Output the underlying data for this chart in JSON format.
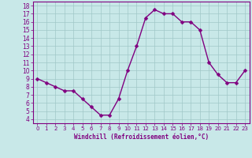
{
  "x": [
    0,
    1,
    2,
    3,
    4,
    5,
    6,
    7,
    8,
    9,
    10,
    11,
    12,
    13,
    14,
    15,
    16,
    17,
    18,
    19,
    20,
    21,
    22,
    23
  ],
  "y": [
    9,
    8.5,
    8,
    7.5,
    7.5,
    6.5,
    5.5,
    4.5,
    4.5,
    6.5,
    10,
    13,
    16.5,
    17.5,
    17,
    17,
    16,
    16,
    15,
    11,
    9.5,
    8.5,
    8.5,
    10
  ],
  "line_color": "#800080",
  "marker_color": "#800080",
  "bg_color": "#c8e8e8",
  "grid_color": "#a0c8c8",
  "xlabel": "Windchill (Refroidissement éolien,°C)",
  "xlabel_color": "#800080",
  "ylim": [
    3.5,
    18.5
  ],
  "xlim": [
    -0.5,
    23.5
  ],
  "yticks": [
    4,
    5,
    6,
    7,
    8,
    9,
    10,
    11,
    12,
    13,
    14,
    15,
    16,
    17,
    18
  ],
  "xticks": [
    0,
    1,
    2,
    3,
    4,
    5,
    6,
    7,
    8,
    9,
    10,
    11,
    12,
    13,
    14,
    15,
    16,
    17,
    18,
    19,
    20,
    21,
    22,
    23
  ],
  "tick_color": "#800080",
  "tick_label_color": "#800080",
  "line_width": 1.0,
  "marker_size": 2.5
}
